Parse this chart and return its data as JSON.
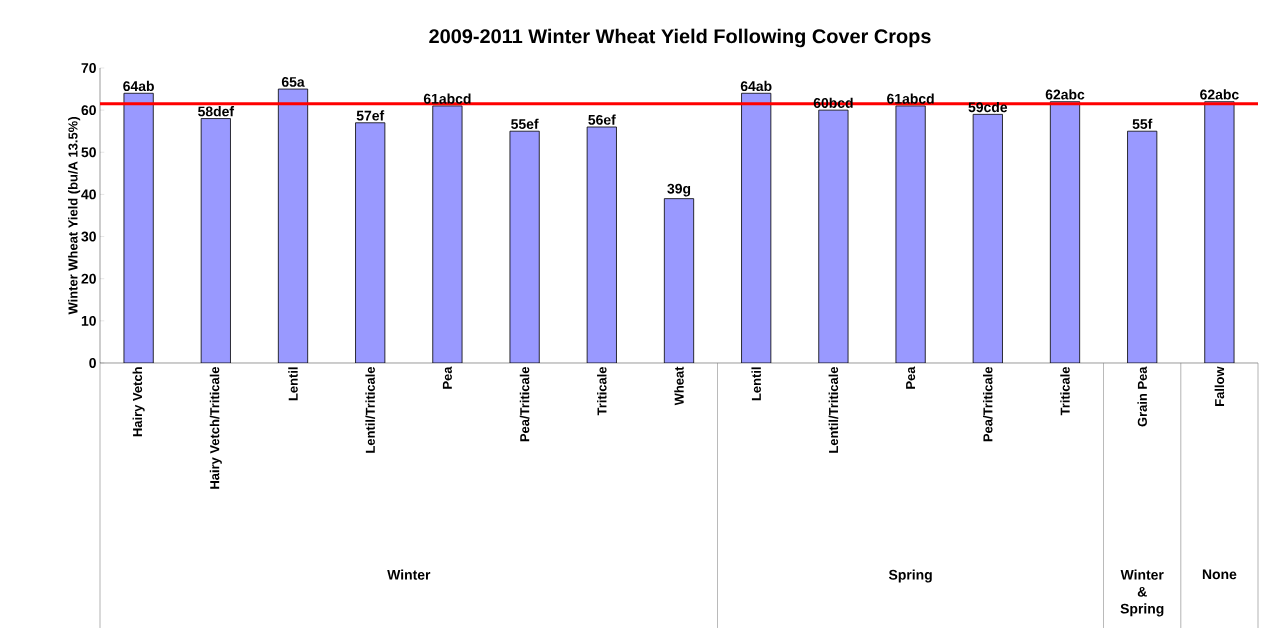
{
  "chart_data": {
    "type": "bar",
    "title": "2009-2011 Winter Wheat Yield Following Cover Crops",
    "ylabel": "Winter Wheat Yield (bu/A 13.5%)",
    "categories": [
      "Hairy Vetch",
      "Hairy Vetch/Triticale",
      "Lentil",
      "Lentil/Triticale",
      "Pea",
      "Pea/Triticale",
      "Triticale",
      "Wheat",
      "Lentil",
      "Lentil/Triticale",
      "Pea",
      "Pea/Triticale",
      "Triticale",
      "Grain Pea",
      "Fallow"
    ],
    "values": [
      64,
      58,
      65,
      57,
      61,
      55,
      56,
      39,
      64,
      60,
      61,
      59,
      62,
      55,
      62
    ],
    "value_labels": [
      "64ab",
      "58def",
      "65a",
      "57ef",
      "61abcd",
      "55ef",
      "56ef",
      "39g",
      "64ab",
      "60bcd",
      "61abcd",
      "59cde",
      "62abc",
      "55f",
      "62abc"
    ],
    "color": "#9999ff",
    "ylim": [
      0,
      70
    ],
    "yticks": [
      0,
      10,
      20,
      30,
      40,
      50,
      60,
      70
    ],
    "ref_lines": [
      {
        "axis": "y",
        "value": 61.5,
        "color": "#ff0000"
      }
    ],
    "annotations": [
      "Winter",
      "Spring",
      "Winter & Spring",
      "None"
    ],
    "grid": false
  }
}
